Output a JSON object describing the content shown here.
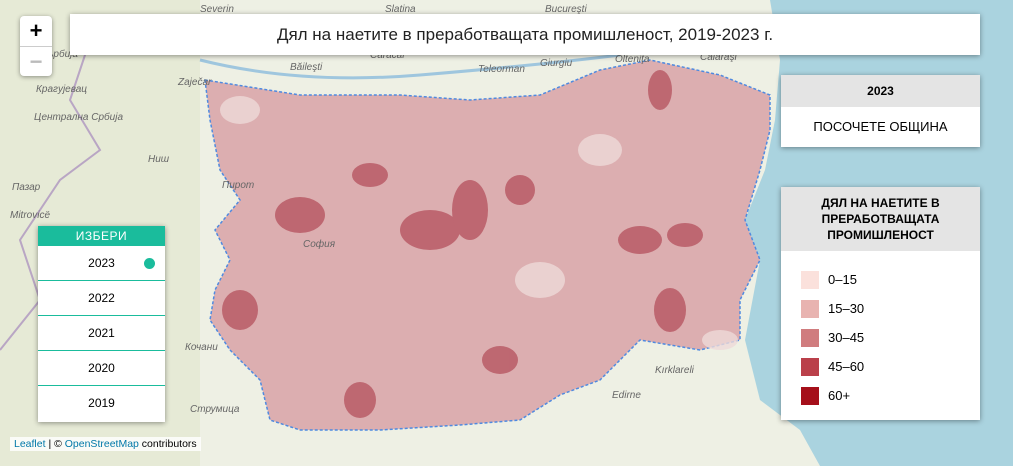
{
  "title": "Дял на наетите в преработващата промишленост, 2019-2023 г.",
  "zoom": {
    "in": "+",
    "out": "−"
  },
  "info": {
    "year": "2023",
    "hint": "ПОСОЧЕТЕ ОБЩИНА"
  },
  "legend": {
    "title": "ДЯЛ НА НАЕТИТЕ В ПРЕРАБОТВАЩАТА ПРОМИШЛЕНОСТ",
    "items": [
      {
        "label": "0–15",
        "color": "#fbe1dc"
      },
      {
        "label": "15–30",
        "color": "#e8b3b0"
      },
      {
        "label": "30–45",
        "color": "#d07c7e"
      },
      {
        "label": "45–60",
        "color": "#ba404a"
      },
      {
        "label": "60+",
        "color": "#a50f1a"
      }
    ]
  },
  "selector": {
    "title": "ИЗБЕРИ",
    "years": [
      "2023",
      "2022",
      "2021",
      "2020",
      "2019"
    ],
    "selected": "2023"
  },
  "attribution": {
    "leaflet": "Leaflet",
    "sep": " | © ",
    "osm": "OpenStreetMap",
    "rest": " contributors"
  },
  "map_labels": [
    "Severin",
    "Bucureşti",
    "Slatina",
    "Băileşti",
    "Caracal",
    "Teleorman",
    "Giurgiu",
    "Olteniţa",
    "Călăraşi",
    "Zaječar",
    "Крагујевац",
    "Централна Србија",
    "Ниш",
    "Пирот",
    "Пазар",
    "Mitrovicë",
    "Кочани",
    "Струмица",
    "Kırklareli",
    "Edirne",
    "Сърбија",
    "София"
  ]
}
